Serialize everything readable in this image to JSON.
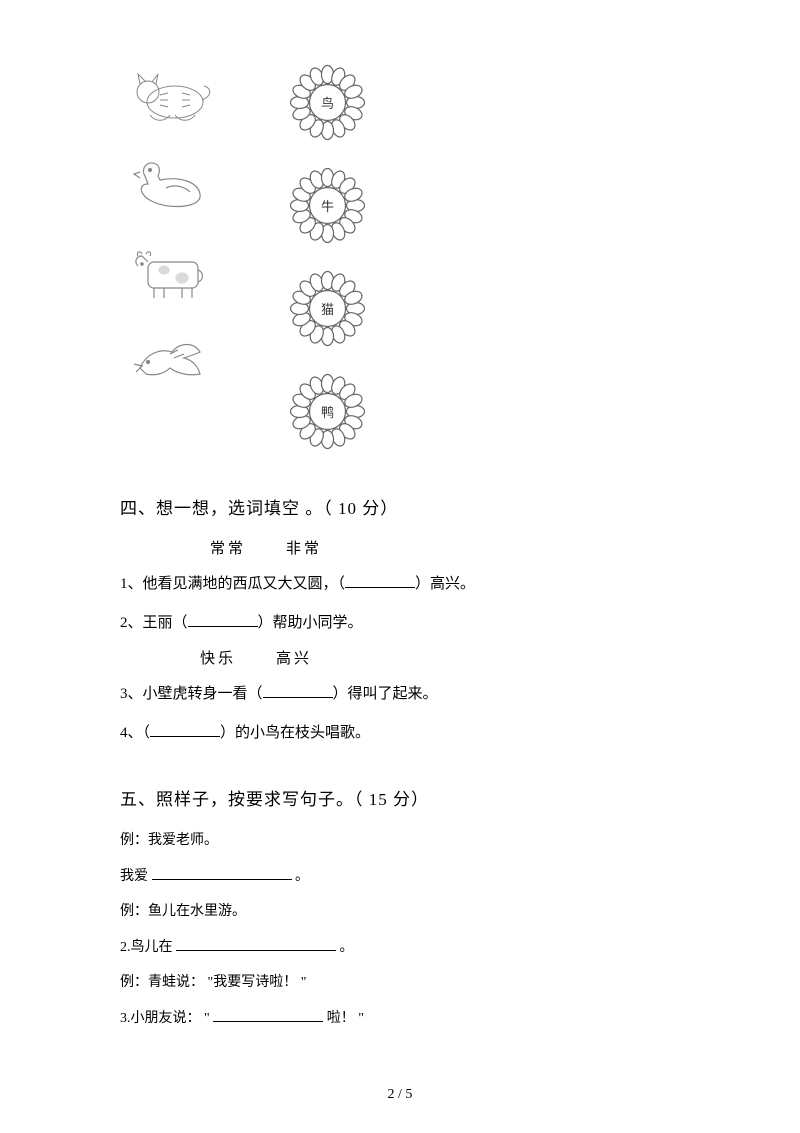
{
  "matching": {
    "animals": [
      "cat",
      "duck",
      "cow",
      "bird"
    ],
    "flower_chars": [
      "鸟",
      "牛",
      "猫",
      "鸭"
    ],
    "animal_stroke": "#888888",
    "flower_stroke": "#666666",
    "flower_fill": "#ffffff"
  },
  "section4": {
    "title": "四、想一想，选词填空   。（ 10 分）",
    "pair1_a": "常常",
    "pair1_b": "非常",
    "q1_pre": "1、他看见满地的西瓜又大又圆，（",
    "q1_post": "）高兴。",
    "q2_pre": "2、王丽（",
    "q2_post": "）帮助小同学。",
    "pair2_a": "快乐",
    "pair2_b": "高兴",
    "q3_pre": "3、小壁虎转身一看（",
    "q3_post": "）得叫了起来。",
    "q4_pre": "4、（",
    "q4_post": "）的小鸟在枝头唱歌。",
    "blank_width": 70
  },
  "section5": {
    "title": "五、照样子，按要求写句子。（    15 分）",
    "ex1": "例：我爱老师。",
    "a1_pre": "我爱",
    "a1_post": "。",
    "ex2": "例：鱼儿在水里游。",
    "a2_pre": "2.鸟儿在",
    "a2_post": "。",
    "ex3": "例：青蛙说：   \"我要写诗啦！  \"",
    "a3_pre": "3.小朋友说：  \"",
    "a3_post": "啦！ \"",
    "blank1_width": 140,
    "blank2_width": 160,
    "blank3_width": 110
  },
  "footer": "2 / 5"
}
